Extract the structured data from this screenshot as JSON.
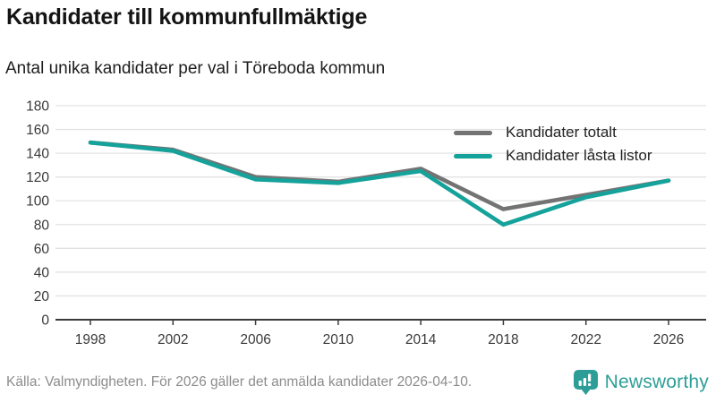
{
  "header": {
    "title": "Kandidater till kommunfullmäktige",
    "subtitle": "Antal unika kandidater per val i Töreboda kommun"
  },
  "chart_data": {
    "type": "line",
    "title": "Kandidater till kommunfullmäktige",
    "xlabel": "",
    "ylabel": "",
    "x": [
      1998,
      2002,
      2006,
      2010,
      2014,
      2018,
      2022,
      2026
    ],
    "series": [
      {
        "name": "Kandidater totalt",
        "color": "#737373",
        "values": [
          149,
          143,
          120,
          116,
          127,
          93,
          105,
          117
        ]
      },
      {
        "name": "Kandidater låsta listor",
        "color": "#15a29a",
        "values": [
          149,
          142,
          118,
          115,
          125,
          80,
          103,
          117
        ]
      }
    ],
    "ylim": [
      0,
      180
    ],
    "ytick_step": 20,
    "grid": true,
    "legend_position": "top-right"
  },
  "footer": {
    "source": "Källa: Valmyndigheten. För 2026 gäller det anmälda kandidater 2026-04-10.",
    "brand": "Newsworthy"
  },
  "colors": {
    "accent_teal": "#15a29a",
    "line_gray": "#737373",
    "brand_teal": "#2d9e97",
    "grid": "#e2e2e2",
    "axis": "#3a3a3a",
    "tick_text": "#3a3a3a"
  }
}
